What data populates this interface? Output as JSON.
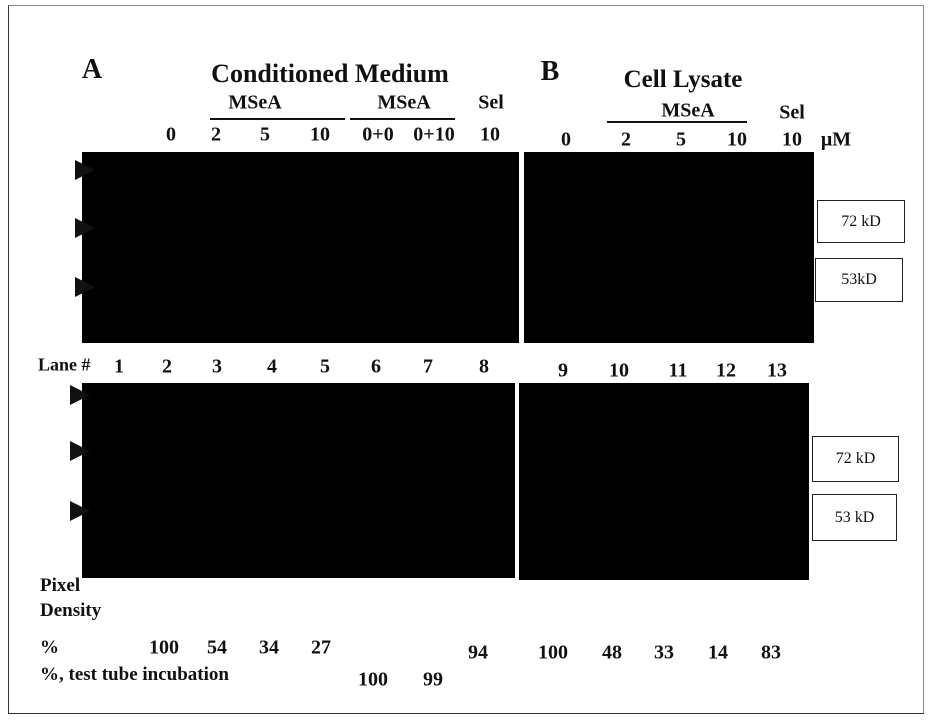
{
  "panel_a": {
    "letter": "A",
    "title": "Conditioned Medium",
    "group_labels": [
      "MSeA",
      "MSeA",
      "Sel"
    ],
    "doses": [
      "0",
      "2",
      "5",
      "10",
      "0+0",
      "0+10",
      "10"
    ]
  },
  "panel_b": {
    "letter": "B",
    "title": "Cell Lysate",
    "group_labels": [
      "MSeA",
      "Sel"
    ],
    "doses": [
      "0",
      "2",
      "5",
      "10",
      "10"
    ],
    "unit": "μM"
  },
  "markers": {
    "top": [
      "72 kD",
      "53kD"
    ],
    "bottom": [
      "72 kD",
      "53 kD"
    ]
  },
  "lanes": {
    "label": "Lane #",
    "numbers": [
      "1",
      "2",
      "3",
      "4",
      "5",
      "6",
      "7",
      "8",
      "9",
      "10",
      "11",
      "12",
      "13"
    ]
  },
  "pixel_density": {
    "label": [
      "Pixel",
      "Density"
    ],
    "rows": [
      {
        "label": "%",
        "values": [
          "100",
          "54",
          "34",
          "27",
          "94",
          "100",
          "48",
          "33",
          "14",
          "83"
        ]
      },
      {
        "label": "%, test tube incubation",
        "values": [
          "100",
          "99"
        ]
      }
    ]
  }
}
